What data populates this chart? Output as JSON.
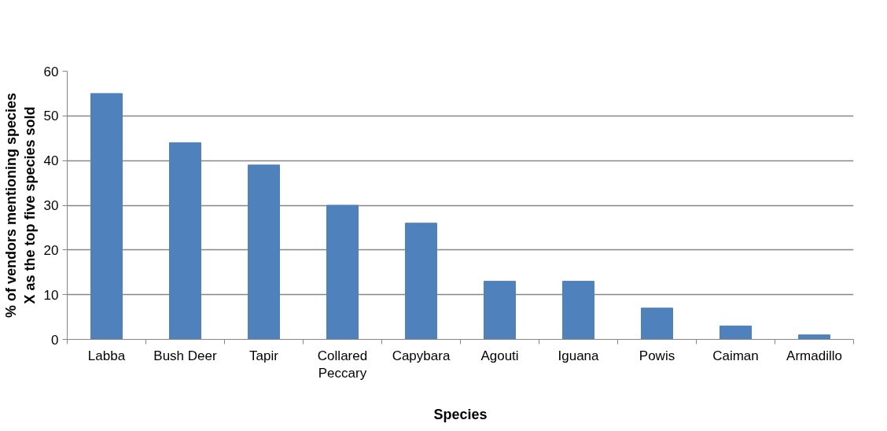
{
  "chart_data": {
    "type": "bar",
    "xlabel": "Species",
    "ylabel": "% of vendors mentioning species X as the top five species sold",
    "categories": [
      "Labba",
      "Bush Deer",
      "Tapir",
      "Collared Peccary",
      "Capybara",
      "Agouti",
      "Iguana",
      "Powis",
      "Caiman",
      "Armadillo"
    ],
    "values": [
      55,
      44,
      39,
      30,
      26,
      13,
      13,
      7,
      3,
      1
    ],
    "color": "#4f81bd",
    "ylim": [
      0,
      60
    ],
    "yticks": [
      0,
      10,
      20,
      30,
      40,
      50,
      60
    ],
    "grid": "y"
  }
}
